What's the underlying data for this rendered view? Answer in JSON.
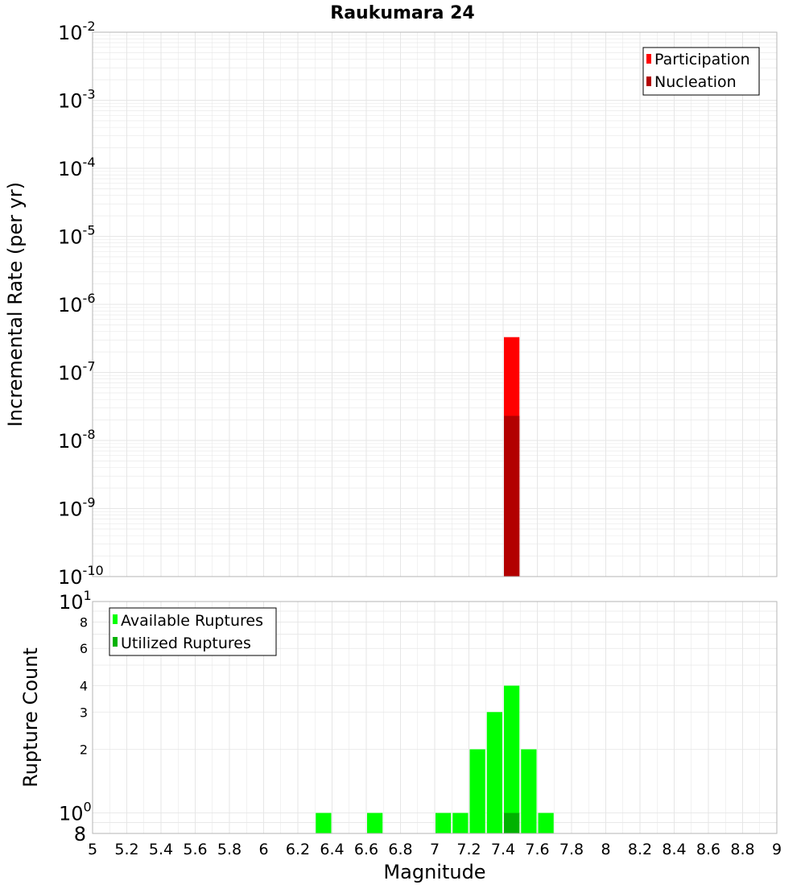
{
  "chart_data": [
    {
      "type": "bar",
      "title": "Raukumara 24",
      "xlabel": "",
      "ylabel": "Incremental Rate (per yr)",
      "yscale": "log",
      "ylim": [
        1e-10,
        0.01
      ],
      "xlim": [
        5,
        9
      ],
      "grid": true,
      "legend_position": "top-right",
      "y_tick_labels": [
        {
          "base": "10",
          "exp": "-10"
        },
        {
          "base": "10",
          "exp": "-9"
        },
        {
          "base": "10",
          "exp": "-8"
        },
        {
          "base": "10",
          "exp": "-7"
        },
        {
          "base": "10",
          "exp": "-6"
        },
        {
          "base": "10",
          "exp": "-5"
        },
        {
          "base": "10",
          "exp": "-4"
        },
        {
          "base": "10",
          "exp": "-3"
        },
        {
          "base": "10",
          "exp": "-2"
        }
      ],
      "bin_width": 0.1,
      "series": [
        {
          "name": "Participation",
          "color": "#ff0000",
          "x": [
            7.45
          ],
          "values": [
            3.3e-07
          ]
        },
        {
          "name": "Nucleation",
          "color": "#b20000",
          "x": [
            7.45
          ],
          "values": [
            2.3e-08
          ]
        }
      ]
    },
    {
      "type": "bar",
      "title": "",
      "xlabel": "Magnitude",
      "ylabel": "Rupture Count",
      "yscale": "log",
      "ylim": [
        0.8,
        10
      ],
      "xlim": [
        5,
        9
      ],
      "grid": true,
      "legend_position": "top-left",
      "x_tick_labels": [
        "5",
        "5.2",
        "5.4",
        "5.6",
        "5.8",
        "6",
        "6.2",
        "6.4",
        "6.6",
        "6.8",
        "7",
        "7.2",
        "7.4",
        "7.6",
        "7.8",
        "8",
        "8.2",
        "8.4",
        "8.6",
        "8.8",
        "9"
      ],
      "y_tick_labels": [
        {
          "base": "8",
          "exp": "",
          "value": 0.8
        },
        {
          "base": "10",
          "exp": "0",
          "value": 1
        },
        {
          "base": "2",
          "exp": "",
          "value": 2
        },
        {
          "base": "3",
          "exp": "",
          "value": 3
        },
        {
          "base": "4",
          "exp": "",
          "value": 4
        },
        {
          "base": "6",
          "exp": "",
          "value": 6
        },
        {
          "base": "8",
          "exp": "",
          "value": 8
        },
        {
          "base": "10",
          "exp": "1",
          "value": 10
        }
      ],
      "bin_width": 0.1,
      "series": [
        {
          "name": "Available Ruptures",
          "color": "#00ff00",
          "x": [
            6.35,
            6.65,
            7.05,
            7.15,
            7.25,
            7.35,
            7.45,
            7.55,
            7.65
          ],
          "values": [
            1,
            1,
            1,
            1,
            2,
            3,
            4,
            2,
            1
          ]
        },
        {
          "name": "Utilized Ruptures",
          "color": "#00b200",
          "x": [
            7.45
          ],
          "values": [
            1
          ]
        }
      ]
    }
  ]
}
